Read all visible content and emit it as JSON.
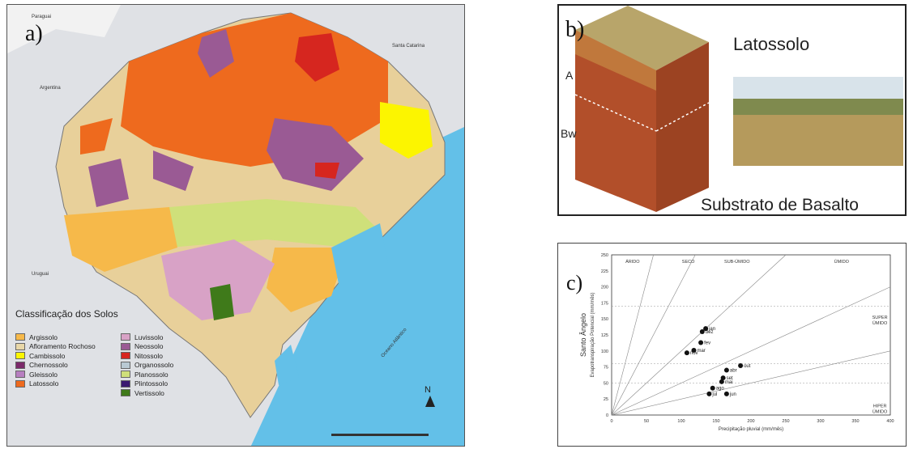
{
  "panel_a": {
    "label": "a)",
    "countries": {
      "paraguai": "Paraguai",
      "argentina": "Argentina",
      "santa_catarina": "Santa Catarina",
      "uruguai": "Uruguai",
      "oceano": "Oceano Atlântico"
    },
    "legend_title": "Classificação dos Solos",
    "legend_left": [
      {
        "name": "Argissolo",
        "color": "#f6b94a"
      },
      {
        "name": "Afloramento Rochoso",
        "color": "#e8d7a8"
      },
      {
        "name": "Cambissolo",
        "color": "#fcf500"
      },
      {
        "name": "Chernossolo",
        "color": "#7b2a6a"
      },
      {
        "name": "Gleissolo",
        "color": "#b77fc0"
      },
      {
        "name": "Latossolo",
        "color": "#ee6a1e"
      }
    ],
    "legend_right": [
      {
        "name": "Luvissolo",
        "color": "#d8a2c6"
      },
      {
        "name": "Neossolo",
        "color": "#9a5a94"
      },
      {
        "name": "Nitossolo",
        "color": "#d6261f"
      },
      {
        "name": "Organossolo",
        "color": "#b9c9d3"
      },
      {
        "name": "Planossolo",
        "color": "#cfe07a"
      },
      {
        "name": "Plintossolo",
        "color": "#3b1a70"
      },
      {
        "name": "Vertissolo",
        "color": "#3f7a1a"
      }
    ],
    "north": "N"
  },
  "panel_b": {
    "label": "b)",
    "title": "Latossolo",
    "horizon_a": "A",
    "horizon_bw": "Bw",
    "substrate": "Substrato de Basalto"
  },
  "panel_c": {
    "label": "c)",
    "chart_data": {
      "type": "scatter",
      "xlabel": "Precipitação pluvial (mm/mês)",
      "ylabel": "Evapotranspiração Potencial (mm/mês)",
      "side_label": "Santo Ângelo",
      "xlim": [
        0,
        400
      ],
      "ylim": [
        0,
        250
      ],
      "x_ticks": [
        0,
        50,
        100,
        150,
        200,
        250,
        300,
        350,
        400
      ],
      "y_ticks": [
        0,
        25,
        50,
        75,
        100,
        125,
        150,
        175,
        200,
        225,
        250
      ],
      "zones": [
        "ÁRIDO",
        "SECO",
        "SUB-ÚMIDO",
        "ÚMIDO",
        "SUPER ÚMIDO",
        "HIPER ÚMIDO"
      ],
      "points": [
        {
          "label": "jan",
          "x": 135,
          "y": 135
        },
        {
          "label": "dez",
          "x": 130,
          "y": 130
        },
        {
          "label": "fev",
          "x": 128,
          "y": 113
        },
        {
          "label": "mar",
          "x": 118,
          "y": 101
        },
        {
          "label": "nov",
          "x": 108,
          "y": 97
        },
        {
          "label": "out",
          "x": 185,
          "y": 77
        },
        {
          "label": "abr",
          "x": 165,
          "y": 70
        },
        {
          "label": "set",
          "x": 160,
          "y": 58
        },
        {
          "label": "mai",
          "x": 158,
          "y": 52
        },
        {
          "label": "ago",
          "x": 145,
          "y": 42
        },
        {
          "label": "jul",
          "x": 140,
          "y": 33
        },
        {
          "label": "jun",
          "x": 165,
          "y": 33
        }
      ]
    }
  }
}
